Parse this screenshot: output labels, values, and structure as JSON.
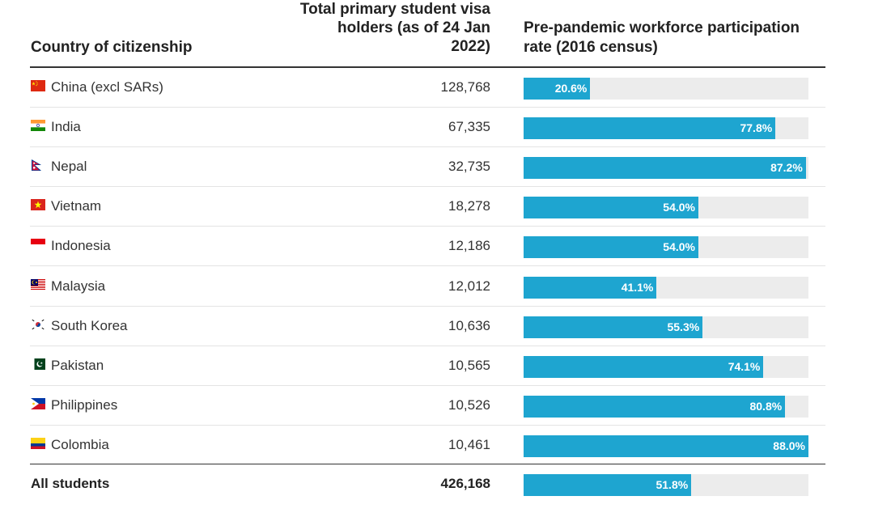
{
  "header": {
    "country": "Country of citizenship",
    "visa_line1": "Total primary student visa",
    "visa_line2": "holders (as of 24 Jan",
    "visa_line3": "2022)",
    "rate_line1": "Pre-pandemic workforce participation",
    "rate_line2": "rate (2016 census)"
  },
  "colors": {
    "bar": "#1ea5d0",
    "track": "#ececec"
  },
  "chart_data": {
    "type": "table",
    "columns": [
      "Country of citizenship",
      "Total primary student visa holders (as of 24 Jan 2022)",
      "Pre-pandemic workforce participation rate (2016 census)"
    ],
    "rows": [
      {
        "country": "China (excl SARs)",
        "flag": "china-flag-icon",
        "visa": "128,768",
        "rate": 20.6,
        "rate_label": "20.6%"
      },
      {
        "country": "India",
        "flag": "india-flag-icon",
        "visa": "67,335",
        "rate": 77.8,
        "rate_label": "77.8%"
      },
      {
        "country": "Nepal",
        "flag": "nepal-flag-icon",
        "visa": "32,735",
        "rate": 87.2,
        "rate_label": "87.2%"
      },
      {
        "country": "Vietnam",
        "flag": "vietnam-flag-icon",
        "visa": "18,278",
        "rate": 54.0,
        "rate_label": "54.0%"
      },
      {
        "country": "Indonesia",
        "flag": "indonesia-flag-icon",
        "visa": "12,186",
        "rate": 54.0,
        "rate_label": "54.0%"
      },
      {
        "country": "Malaysia",
        "flag": "malaysia-flag-icon",
        "visa": "12,012",
        "rate": 41.1,
        "rate_label": "41.1%"
      },
      {
        "country": "South Korea",
        "flag": "south-korea-flag-icon",
        "visa": "10,636",
        "rate": 55.3,
        "rate_label": "55.3%"
      },
      {
        "country": "Pakistan",
        "flag": "pakistan-flag-icon",
        "visa": "10,565",
        "rate": 74.1,
        "rate_label": "74.1%"
      },
      {
        "country": "Philippines",
        "flag": "philippines-flag-icon",
        "visa": "10,526",
        "rate": 80.8,
        "rate_label": "80.8%"
      },
      {
        "country": "Colombia",
        "flag": "colombia-flag-icon",
        "visa": "10,461",
        "rate": 88.0,
        "rate_label": "88.0%"
      }
    ],
    "total": {
      "country": "All students",
      "visa": "426,168",
      "rate": 51.8,
      "rate_label": "51.8%"
    },
    "xlim": [
      0,
      88.0
    ]
  }
}
